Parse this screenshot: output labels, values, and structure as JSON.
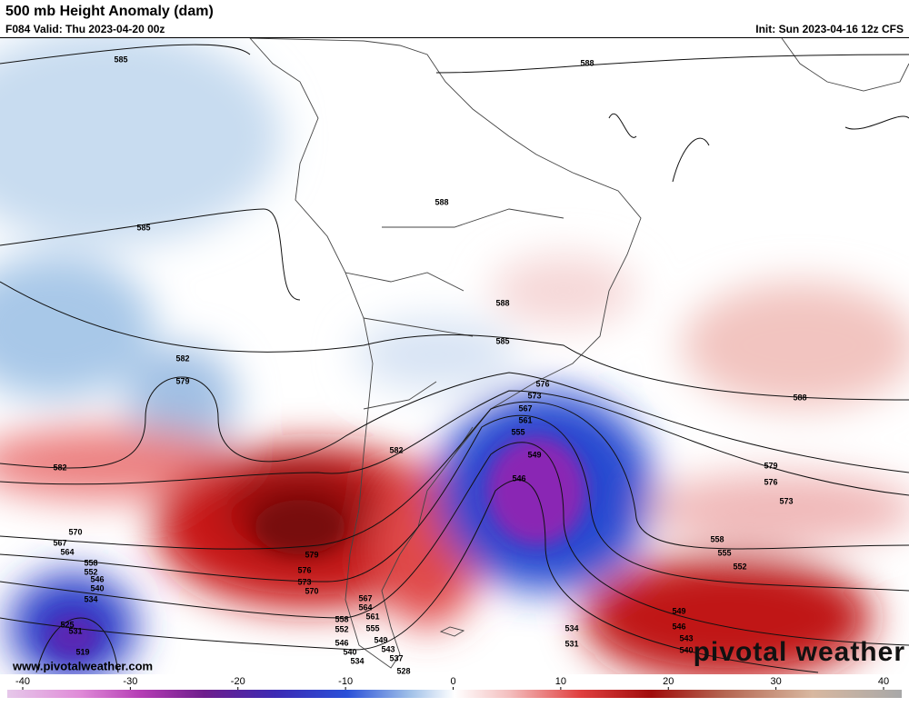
{
  "header": {
    "title": "500 mb Height Anomaly (dam)",
    "valid": "F084 Valid: Thu 2023-04-20 00z",
    "init": "Init: Sun 2023-04-16 12z CFS"
  },
  "contour_labels": [
    585,
    588,
    588,
    585,
    588,
    585,
    582,
    579,
    576,
    573,
    567,
    561,
    555,
    549,
    546,
    588,
    582,
    582,
    579,
    576,
    573,
    570,
    567,
    564,
    558,
    552,
    546,
    540,
    534,
    531,
    525,
    519,
    579,
    576,
    573,
    570,
    567,
    564,
    561,
    558,
    555,
    552,
    549,
    546,
    543,
    540,
    537,
    534,
    528,
    558,
    555,
    552,
    549,
    546,
    543,
    540,
    534,
    531
  ],
  "colorbar": {
    "ticks": [
      -40,
      -30,
      -20,
      -10,
      0,
      10,
      20,
      30,
      40
    ]
  },
  "watermark": "www.pivotalweather.com",
  "logo": "pivotal weather"
}
